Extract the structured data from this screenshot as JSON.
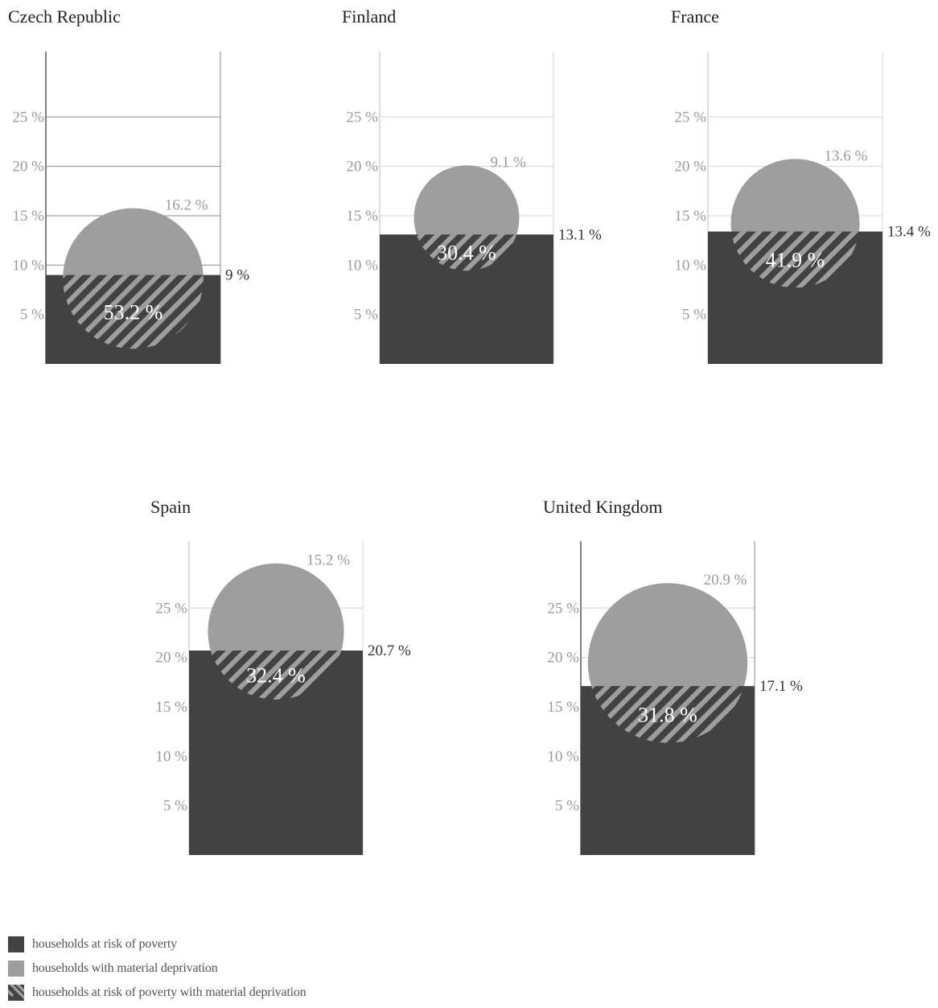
{
  "colors": {
    "risk": "#424242",
    "deprivation": "#9e9e9e",
    "grid": "#d4d4d4",
    "axis_text": "#9a9a9a",
    "dark_text": "#333333",
    "title_text": "#222222"
  },
  "chart_data": [
    {
      "type": "bar",
      "title": "Czech Republic",
      "tick_labels": [
        "25 %",
        "20 %",
        "15 %",
        "10 %",
        "5 %"
      ],
      "ticks": [
        25,
        20,
        15,
        10,
        5
      ],
      "ylim": [
        0,
        31.7
      ],
      "risk_value": 9,
      "risk_label": "9 %",
      "deprivation_value": 16.2,
      "deprivation_label": "16.2 %",
      "overlap_label": "53.2 %",
      "grid": true,
      "strong_grid": true
    },
    {
      "type": "bar",
      "title": "Finland",
      "tick_labels": [
        "25 %",
        "20 %",
        "15 %",
        "10 %",
        "5 %"
      ],
      "ticks": [
        25,
        20,
        15,
        10,
        5
      ],
      "ylim": [
        0,
        31.7
      ],
      "risk_value": 13.1,
      "risk_label": "13.1 %",
      "deprivation_value": 9.1,
      "deprivation_label": "9.1 %",
      "overlap_label": "30.4 %",
      "grid": true,
      "strong_grid": false
    },
    {
      "type": "bar",
      "title": "France",
      "tick_labels": [
        "25 %",
        "20 %",
        "15 %",
        "10 %",
        "5 %"
      ],
      "ticks": [
        25,
        20,
        15,
        10,
        5
      ],
      "ylim": [
        0,
        31.7
      ],
      "risk_value": 13.4,
      "risk_label": "13.4 %",
      "deprivation_value": 13.6,
      "deprivation_label": "13.6 %",
      "overlap_label": "41.9 %",
      "grid": true,
      "strong_grid": false
    },
    {
      "type": "bar",
      "title": "Spain",
      "tick_labels": [
        "25 %",
        "20 %",
        "15 %",
        "10 %",
        "5 %"
      ],
      "ticks": [
        25,
        20,
        15,
        10,
        5
      ],
      "ylim": [
        0,
        31.7
      ],
      "risk_value": 20.7,
      "risk_label": "20.7 %",
      "deprivation_value": 15.2,
      "deprivation_label": "15.2 %",
      "overlap_label": "32.4 %",
      "grid": true,
      "strong_grid": false
    },
    {
      "type": "bar",
      "title": "United Kingdom",
      "tick_labels": [
        "25 %",
        "20 %",
        "15 %",
        "10 %",
        "5 %"
      ],
      "ticks": [
        25,
        20,
        15,
        10,
        5
      ],
      "ylim": [
        0,
        31.7
      ],
      "risk_value": 17.1,
      "risk_label": "17.1 %",
      "deprivation_value": 20.9,
      "deprivation_label": "20.9 %",
      "overlap_label": "31.8 %",
      "grid": true,
      "strong_grid": false
    }
  ],
  "legend": {
    "items": [
      {
        "label": "households at risk of poverty",
        "swatch": "risk"
      },
      {
        "label": "households with material deprivation",
        "swatch": "deprivation"
      },
      {
        "label": "households at risk of poverty with material deprivation",
        "swatch": "overlap"
      }
    ]
  }
}
